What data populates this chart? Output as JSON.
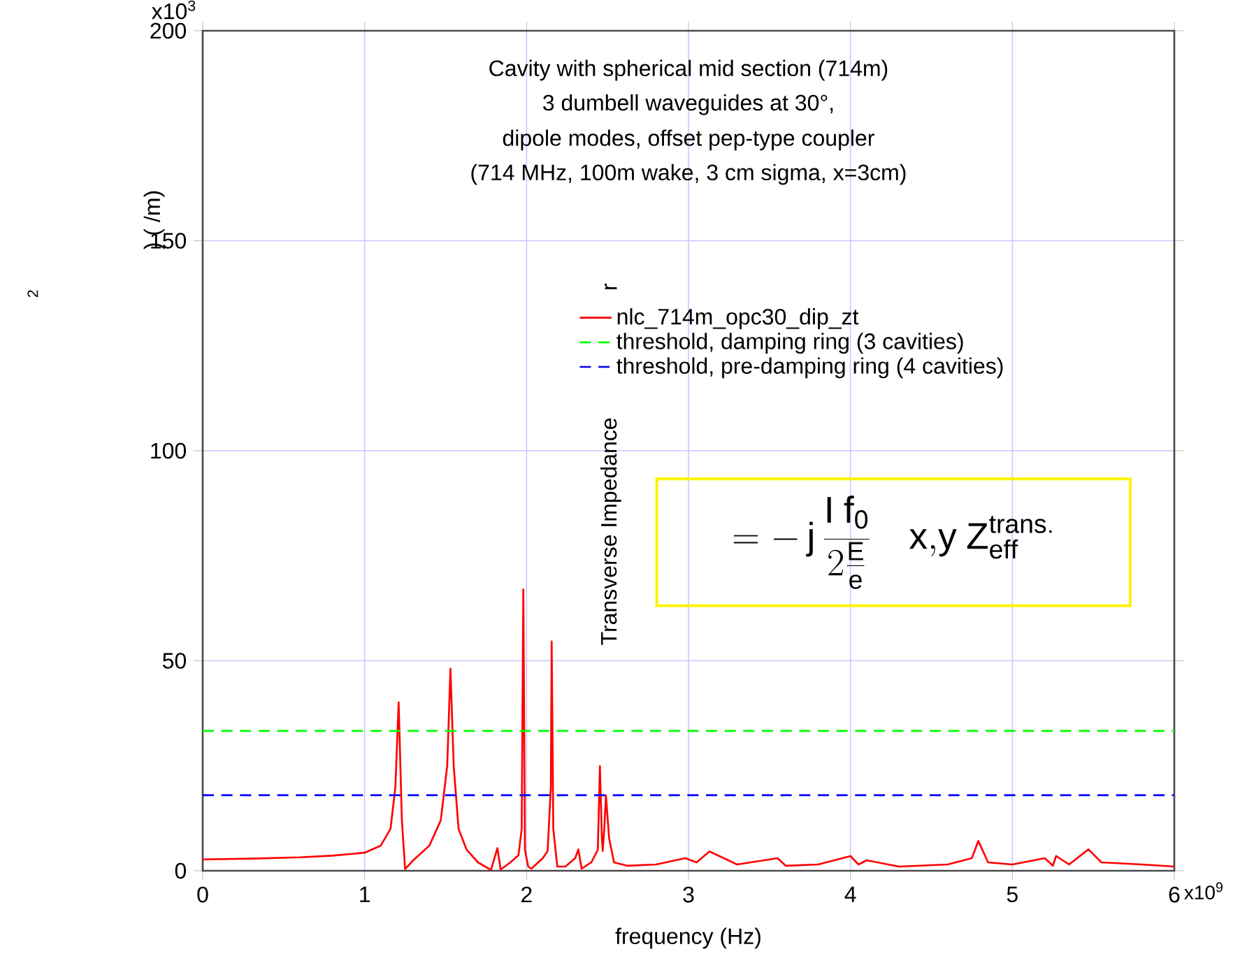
{
  "chart_data": {
    "type": "line",
    "title": "Cavity with spherical mid section (714m)",
    "xlabel": "frequency (Hz)",
    "ylabel": "Transverse Impedance",
    "annotations": [
      "3 dumbell waveguides at 30°,",
      "dipole modes, offset pep-type coupler",
      "(714 MHz, 100m wake, 3 cm sigma, x=3cm)",
      "= -\\,\\mathrm{j}\\, \\frac{\\mathrm{I\\ f_0}}{2\\frac{\\mathrm{E}}{\\mathrm{e}}}\\quad \\mathrm{x{,}y}\\ \\mathrm{Z^{trans.}_{eff}}",
      "r",
      ") ( /m)",
      "2",
      "x10$^{9}$",
      "x10$^{3}$"
    ],
    "series": [
      {
        "name": "nlc_714m_opc30_dip_zt",
        "color": "#ff0000",
        "line_style": "solid",
        "x": [
          0,
          0.3,
          0.6,
          0.8,
          1.0,
          1.1,
          1.16,
          1.19,
          1.21,
          1.23,
          1.25,
          1.3,
          1.4,
          1.47,
          1.51,
          1.53,
          1.55,
          1.58,
          1.63,
          1.7,
          1.78,
          1.82,
          1.84,
          1.9,
          1.95,
          1.97,
          1.98,
          1.99,
          2.01,
          2.03,
          2.1,
          2.13,
          2.15,
          2.155,
          2.165,
          2.19,
          2.24,
          2.3,
          2.32,
          2.34,
          2.4,
          2.44,
          2.453,
          2.465,
          2.47,
          2.48,
          2.49,
          2.51,
          2.54,
          2.62,
          2.8,
          2.98,
          3.05,
          3.13,
          3.3,
          3.55,
          3.6,
          3.8,
          4.0,
          4.05,
          4.1,
          4.3,
          4.6,
          4.75,
          4.79,
          4.85,
          5.0,
          5.2,
          5.25,
          5.27,
          5.35,
          5.47,
          5.55,
          5.8,
          6.0
        ],
        "values": [
          2.7,
          2.9,
          3.2,
          3.6,
          4.3,
          6,
          10,
          20,
          40.1,
          12,
          0.4,
          2.5,
          6,
          12,
          25,
          48.1,
          25,
          10,
          5,
          2,
          0.2,
          5.4,
          0.3,
          2,
          3.7,
          10,
          67,
          5,
          1,
          0.5,
          3,
          4.7,
          20,
          54.6,
          10,
          1,
          1,
          3,
          5.1,
          0.5,
          2,
          5,
          24.9,
          8,
          4.7,
          10,
          17.9,
          7.7,
          2,
          1.2,
          1.5,
          3,
          2,
          4.6,
          1.5,
          3,
          1.2,
          1.5,
          3.5,
          1.5,
          2.5,
          1,
          1.5,
          3,
          7.1,
          2,
          1.5,
          3,
          1.2,
          3.5,
          1.5,
          5.1,
          2,
          1.5,
          1
        ]
      },
      {
        "name": "threshold, damping ring (3 cavities)",
        "color": "#00ff00",
        "line_style": "dashed",
        "x": [
          0,
          6
        ],
        "values": [
          33.3,
          33.3
        ]
      },
      {
        "name": "threshold, pre-damping ring (4 cavities)",
        "color": "#0000ff",
        "line_style": "dashed",
        "x": [
          0,
          6
        ],
        "values": [
          18,
          18
        ]
      }
    ],
    "xlim": [
      0,
      6
    ],
    "ylim": [
      0,
      200
    ],
    "xticks": [
      0,
      1,
      2,
      3,
      4,
      5,
      6
    ],
    "yticks": [
      0,
      50,
      100,
      150,
      200
    ],
    "grid": true,
    "legend": "top right",
    "marker": "none"
  }
}
